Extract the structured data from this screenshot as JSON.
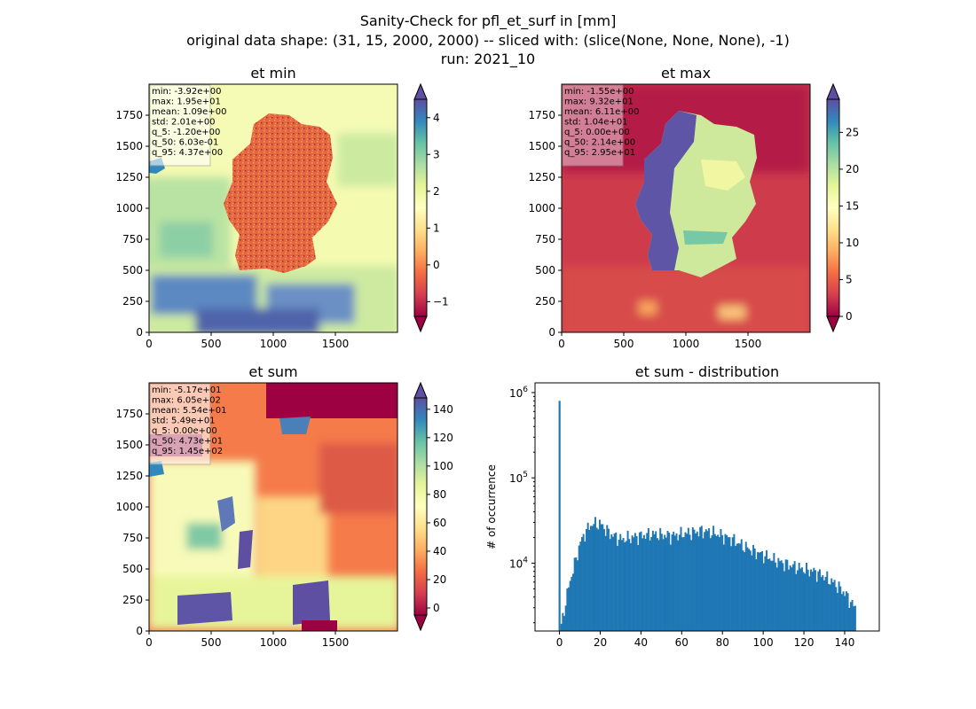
{
  "figure": {
    "suptitle_lines": [
      "Sanity-Check for pfl_et_surf in [mm]",
      "original data shape: (31, 15, 2000, 2000) -- sliced with: (slice(None, None, None), -1)",
      "run: 2021_10"
    ]
  },
  "chart_data": [
    {
      "type": "heatmap",
      "title": "et min",
      "xlim": [
        0,
        2000
      ],
      "ylim": [
        0,
        2000
      ],
      "x_ticks": [
        0,
        500,
        1000,
        1500
      ],
      "y_ticks": [
        0,
        250,
        500,
        750,
        1000,
        1250,
        1500,
        1750
      ],
      "colormap": "Spectral",
      "colorbar": {
        "vmin": -1.4,
        "vmax": 4.5,
        "ticks": [
          -1,
          0,
          1,
          2,
          3,
          4
        ],
        "extend": "both"
      },
      "stats": {
        "min": "-3.92e+00",
        "max": "1.95e+01",
        "mean": "1.09e+00",
        "std": "2.01e+00",
        "q_5": "-1.20e+00",
        "q_50": "6.03e-01",
        "q_95": "4.37e+00"
      }
    },
    {
      "type": "heatmap",
      "title": "et max",
      "xlim": [
        0,
        2000
      ],
      "ylim": [
        0,
        2000
      ],
      "x_ticks": [
        0,
        500,
        1000,
        1500
      ],
      "y_ticks": [
        0,
        250,
        500,
        750,
        1000,
        1250,
        1500,
        1750
      ],
      "colormap": "Spectral",
      "colorbar": {
        "vmin": 0,
        "vmax": 29.5,
        "ticks": [
          0,
          5,
          10,
          15,
          20,
          25
        ],
        "extend": "both"
      },
      "stats": {
        "min": "-1.55e+00",
        "max": "9.32e+01",
        "mean": "6.11e+00",
        "std": "1.04e+01",
        "q_5": "0.00e+00",
        "q_50": "2.14e+00",
        "q_95": "2.95e+01"
      }
    },
    {
      "type": "heatmap",
      "title": "et sum",
      "xlim": [
        0,
        2000
      ],
      "ylim": [
        0,
        2000
      ],
      "x_ticks": [
        0,
        500,
        1000,
        1500
      ],
      "y_ticks": [
        0,
        250,
        500,
        750,
        1000,
        1250,
        1500,
        1750
      ],
      "colormap": "Spectral",
      "colorbar": {
        "vmin": -5,
        "vmax": 148,
        "ticks": [
          0,
          20,
          40,
          60,
          80,
          100,
          120,
          140
        ],
        "extend": "both"
      },
      "stats": {
        "min": "-5.17e+01",
        "max": "6.05e+02",
        "mean": "5.54e+01",
        "std": "5.49e+01",
        "q_5": "0.00e+00",
        "q_50": "4.73e+01",
        "q_95": "1.45e+02"
      }
    },
    {
      "type": "bar",
      "title": "et sum - distribution",
      "ylabel": "# of occurrence",
      "yscale": "log",
      "xlim": [
        -12,
        157
      ],
      "ylim": [
        1600,
        1300000
      ],
      "x_ticks": [
        0,
        20,
        40,
        60,
        80,
        100,
        120,
        140
      ],
      "y_ticks": [
        10000,
        100000,
        1000000
      ],
      "bar_color": "#1f77b4",
      "spike": {
        "x": 0,
        "count": 800000
      },
      "bins": {
        "start": 0.5,
        "width": 0.725,
        "end": 145
      },
      "envelope": [
        [
          1,
          1900
        ],
        [
          3,
          3500
        ],
        [
          5,
          6000
        ],
        [
          8,
          11000
        ],
        [
          10,
          17000
        ],
        [
          13,
          24000
        ],
        [
          16,
          29000
        ],
        [
          20,
          29000
        ],
        [
          25,
          22000
        ],
        [
          30,
          19000
        ],
        [
          35,
          20000
        ],
        [
          40,
          21000
        ],
        [
          45,
          22000
        ],
        [
          50,
          21500
        ],
        [
          55,
          21000
        ],
        [
          60,
          22000
        ],
        [
          65,
          23000
        ],
        [
          70,
          24000
        ],
        [
          75,
          23000
        ],
        [
          80,
          21000
        ],
        [
          85,
          19000
        ],
        [
          90,
          16000
        ],
        [
          95,
          14000
        ],
        [
          100,
          12500
        ],
        [
          105,
          11000
        ],
        [
          110,
          10000
        ],
        [
          115,
          9200
        ],
        [
          120,
          8500
        ],
        [
          125,
          8000
        ],
        [
          130,
          7000
        ],
        [
          135,
          5800
        ],
        [
          140,
          4500
        ],
        [
          145,
          3000
        ]
      ]
    }
  ]
}
